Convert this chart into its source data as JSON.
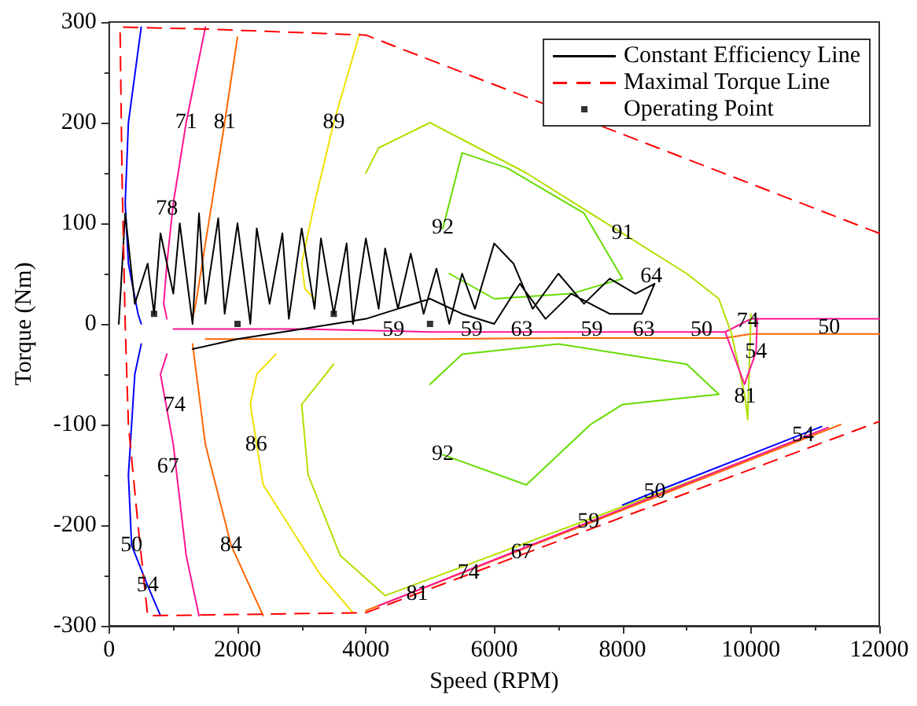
{
  "chart_data": {
    "type": "line",
    "xlabel": "Speed (RPM)",
    "ylabel": "Torque (Nm)",
    "xlim": [
      0,
      12000
    ],
    "ylim": [
      -300,
      300
    ],
    "xticks": [
      0,
      2000,
      4000,
      6000,
      8000,
      10000,
      12000
    ],
    "yticks": [
      -300,
      -200,
      -100,
      0,
      100,
      200,
      300
    ],
    "grid": false,
    "legend": "top right",
    "marker": "none",
    "series": [
      {
        "color": "#0000ff",
        "x": [
          500,
          300,
          250,
          300,
          450,
          500
        ],
        "values": [
          295,
          200,
          120,
          60,
          10,
          0
        ]
      },
      {
        "color": "#ff1493",
        "x": [
          1500,
          1200,
          1000,
          900,
          850,
          900
        ],
        "values": [
          295,
          200,
          120,
          60,
          20,
          5
        ]
      },
      {
        "color": "#ff6600",
        "x": [
          2000,
          1800,
          1600,
          1450,
          1350,
          1300
        ],
        "values": [
          285,
          200,
          120,
          60,
          20,
          5
        ]
      },
      {
        "color": "#f0e000",
        "x": [
          3900,
          3500,
          3200,
          3000,
          3050,
          3200
        ],
        "values": [
          288,
          200,
          120,
          60,
          35,
          25
        ]
      },
      {
        "color": "#b0e000",
        "x": [
          4000,
          4200,
          5000,
          6500,
          8000,
          9000,
          9500
        ],
        "values": [
          150,
          175,
          200,
          150,
          90,
          50,
          25
        ]
      },
      {
        "color": "#66dd00",
        "x": [
          5200,
          5500,
          6200,
          7400,
          8000,
          7200,
          6000,
          5300
        ],
        "values": [
          95,
          170,
          155,
          110,
          45,
          30,
          25,
          50
        ]
      },
      {
        "color": "#ff1493",
        "x": [
          1000,
          3000,
          5000,
          7000,
          9000,
          9600,
          10000,
          12000
        ],
        "values": [
          -5,
          -5,
          -8,
          -8,
          -8,
          -8,
          5,
          5
        ]
      },
      {
        "color": "#ff6600",
        "x": [
          1500,
          3000,
          5000,
          7000,
          9000,
          9600,
          10000,
          12000
        ],
        "values": [
          -15,
          -15,
          -15,
          -14,
          -14,
          -14,
          -10,
          -10
        ]
      },
      {
        "color": "#0000ff",
        "x": [
          500,
          400,
          300,
          350,
          600,
          800
        ],
        "values": [
          -20,
          -50,
          -150,
          -220,
          -260,
          -290
        ]
      },
      {
        "color": "#ff1493",
        "x": [
          900,
          800,
          1000,
          1200,
          1400
        ],
        "values": [
          -30,
          -50,
          -120,
          -230,
          -290
        ]
      },
      {
        "color": "#ff6600",
        "x": [
          1300,
          1500,
          1900,
          2400
        ],
        "values": [
          -20,
          -120,
          -220,
          -290
        ]
      },
      {
        "color": "#f0e000",
        "x": [
          2600,
          2300,
          2200,
          2400,
          3300,
          3800
        ],
        "values": [
          -30,
          -50,
          -80,
          -160,
          -250,
          -287
        ]
      },
      {
        "color": "#b0e000",
        "x": [
          3500,
          3000,
          3100,
          3600,
          4300,
          11000
        ],
        "values": [
          -40,
          -80,
          -150,
          -230,
          -270,
          -110
        ]
      },
      {
        "color": "#66dd00",
        "x": [
          5000,
          5500,
          7000,
          9000,
          9500,
          8000,
          7500,
          6500,
          5200
        ],
        "values": [
          -60,
          -30,
          -20,
          -40,
          -70,
          -80,
          -100,
          -160,
          -130
        ]
      },
      {
        "color": "#ff6600",
        "x": [
          4000,
          11400
        ],
        "values": [
          -285,
          -100
        ]
      },
      {
        "color": "#ff1493",
        "x": [
          4200,
          7470,
          11200
        ],
        "values": [
          -280,
          -197,
          -103
        ]
      },
      {
        "color": "#0000ff",
        "x": [
          8000,
          8500,
          11100
        ],
        "values": [
          -180,
          -167,
          -102
        ]
      },
      {
        "color": "#b0e000",
        "x": [
          9500,
          9700,
          9910,
          9950,
          10000
        ],
        "values": [
          25,
          -10,
          -73,
          -95,
          10
        ]
      },
      {
        "color": "#ff1493",
        "x": [
          9600,
          9900,
          10080,
          10100
        ],
        "values": [
          -8,
          -60,
          -28,
          5
        ]
      },
      {
        "name": "Constant Efficiency Line",
        "color": "#000000",
        "x": [
          150,
          250,
          400,
          600,
          700,
          800,
          1000,
          1100,
          1300,
          1400,
          1500,
          1700,
          1800,
          2000,
          2200,
          2300,
          2500,
          2700,
          2800,
          3000,
          3200,
          3300,
          3500,
          3700,
          3800,
          4000,
          4200,
          4300,
          4500,
          4700,
          4900,
          5100,
          5300,
          5500,
          5700,
          6000,
          6300,
          6600,
          7000,
          7400,
          7800,
          8200,
          8500,
          8300,
          7800,
          7200,
          6800,
          6400,
          6000,
          5500,
          5000,
          4000,
          3000,
          2000,
          1300
        ],
        "values": [
          0,
          110,
          20,
          60,
          10,
          90,
          30,
          100,
          0,
          110,
          20,
          105,
          10,
          100,
          0,
          95,
          20,
          90,
          5,
          95,
          15,
          85,
          10,
          80,
          0,
          85,
          15,
          75,
          15,
          70,
          10,
          55,
          0,
          50,
          15,
          80,
          60,
          15,
          50,
          20,
          45,
          30,
          40,
          10,
          10,
          30,
          5,
          40,
          0,
          10,
          25,
          5,
          -5,
          -15,
          -25
        ]
      },
      {
        "name": "Maximal Torque Line",
        "color": "#ff0000",
        "line_style": "dashed",
        "x": [
          12000,
          4000,
          1500,
          170,
          200,
          250,
          300,
          450,
          600,
          4000,
          12000
        ],
        "values": [
          90,
          287,
          293,
          295,
          150,
          0,
          -100,
          -200,
          -290,
          -287,
          -97
        ]
      },
      {
        "type": "scatter",
        "name": "Operating Point",
        "color": "#000000",
        "marker": "square",
        "x": [
          700,
          2000,
          3500,
          5000
        ],
        "values": [
          10,
          0,
          10,
          0
        ]
      }
    ],
    "annotations": [
      {
        "text": "81",
        "x": 1800,
        "y": 200
      },
      {
        "text": "71",
        "x": 1200,
        "y": 200
      },
      {
        "text": "78",
        "x": 900,
        "y": 114
      },
      {
        "text": "89",
        "x": 3500,
        "y": 200
      },
      {
        "text": "92",
        "x": 5200,
        "y": 95
      },
      {
        "text": "91",
        "x": 8000,
        "y": 90
      },
      {
        "text": "64",
        "x": 8450,
        "y": 47
      },
      {
        "text": "59",
        "x": 4430,
        "y": -6
      },
      {
        "text": "59",
        "x": 5650,
        "y": -6
      },
      {
        "text": "63",
        "x": 6430,
        "y": -6
      },
      {
        "text": "59",
        "x": 7520,
        "y": -6
      },
      {
        "text": "63",
        "x": 8330,
        "y": -6
      },
      {
        "text": "50",
        "x": 9230,
        "y": -6
      },
      {
        "text": "74",
        "x": 9950,
        "y": 2
      },
      {
        "text": "50",
        "x": 11220,
        "y": -4
      },
      {
        "text": "54",
        "x": 10080,
        "y": -28
      },
      {
        "text": "81",
        "x": 9910,
        "y": -73
      },
      {
        "text": "54",
        "x": 10810,
        "y": -111
      },
      {
        "text": "50",
        "x": 8500,
        "y": -167
      },
      {
        "text": "59",
        "x": 7470,
        "y": -197
      },
      {
        "text": "67",
        "x": 6430,
        "y": -227
      },
      {
        "text": "74",
        "x": 5600,
        "y": -248
      },
      {
        "text": "81",
        "x": 4800,
        "y": -269
      },
      {
        "text": "92",
        "x": 5200,
        "y": -130
      },
      {
        "text": "86",
        "x": 2290,
        "y": -120
      },
      {
        "text": "84",
        "x": 1900,
        "y": -220
      },
      {
        "text": "74",
        "x": 1020,
        "y": -81
      },
      {
        "text": "67",
        "x": 920,
        "y": -142
      },
      {
        "text": "50",
        "x": 350,
        "y": -220
      },
      {
        "text": "54",
        "x": 600,
        "y": -260
      }
    ]
  }
}
